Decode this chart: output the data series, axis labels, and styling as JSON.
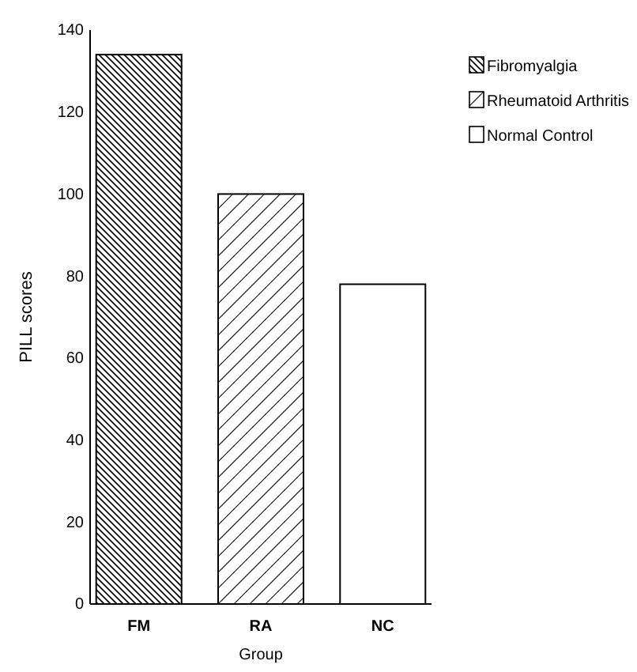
{
  "chart_data": {
    "type": "bar",
    "xlabel": "Group",
    "ylabel": "PILL scores",
    "categories": [
      "FM",
      "RA",
      "NC"
    ],
    "series": [
      {
        "name": "Fibromyalgia",
        "color": "#000000",
        "values": [
          134,
          null,
          null
        ]
      },
      {
        "name": "Rheumatoid Arthritis",
        "color": "#000000",
        "values": [
          null,
          100,
          null
        ]
      },
      {
        "name": "Normal Control",
        "color": "#000000",
        "values": [
          null,
          null,
          78
        ]
      }
    ],
    "ylim": [
      0,
      140
    ],
    "yticks": [
      0,
      20,
      40,
      60,
      80,
      100,
      120,
      140
    ],
    "grid": false,
    "legend": "top right"
  }
}
